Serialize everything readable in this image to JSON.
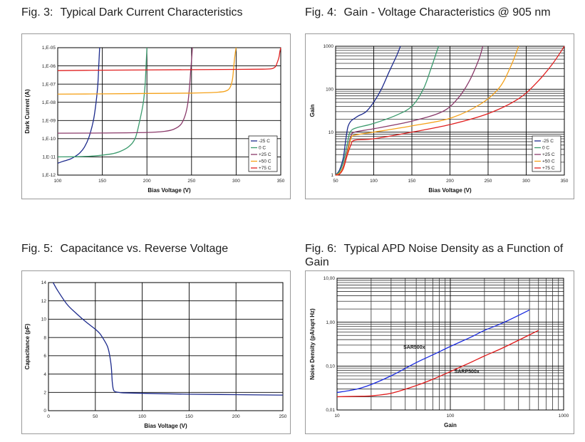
{
  "figures": [
    {
      "number": "Fig. 3:",
      "title": "Typical Dark Current Characteristics"
    },
    {
      "number": "Fig. 4:",
      "title": "Gain - Voltage Characteristics @ 905 nm"
    },
    {
      "number": "Fig. 5:",
      "title": "Capacitance vs. Reverse Voltage"
    },
    {
      "number": "Fig. 6:",
      "title": "Typical APD Noise Density as a Function of Gain"
    }
  ],
  "colors": {
    "-25C": "#1c2a8c",
    "0C": "#3a9a6c",
    "+25C": "#8a3a6a",
    "+50C": "#f5a21a",
    "+75C": "#e02020",
    "capacitance": "#1c2a8c",
    "SAR500x": "#1a2ae0",
    "SARP500x": "#e01a1a"
  },
  "chart_data": [
    {
      "id": "fig3",
      "type": "line",
      "title": "Typical Dark Current Characteristics",
      "xlabel": "Bias Voltage (V)",
      "ylabel": "Dark Current (A)",
      "xlim": [
        100,
        350
      ],
      "ylog": true,
      "ylim": [
        1e-12,
        1e-05
      ],
      "xticks": [
        "100",
        "150",
        "200",
        "250",
        "300",
        "350"
      ],
      "yticks": [
        "1,E-12",
        "1,E-11",
        "1,E-10",
        "1,E-09",
        "1,E-08",
        "1,E-07",
        "1,E-06",
        "1,E-05"
      ],
      "legend": "bottom-right",
      "series": [
        {
          "name": "-25 C",
          "color": "#1c2a8c",
          "x": [
            100,
            105,
            110,
            115,
            120,
            125,
            130,
            135,
            140,
            143,
            145,
            146,
            147
          ],
          "y": [
            4.5e-12,
            5.5e-12,
            6.5e-12,
            8e-12,
            1.1e-11,
            1.7e-11,
            3.5e-11,
            1.2e-10,
            1e-09,
            1e-08,
            1e-07,
            1e-06,
            1e-05
          ]
        },
        {
          "name": "0 C",
          "color": "#3a9a6c",
          "x": [
            100,
            120,
            140,
            160,
            170,
            180,
            187,
            192,
            196,
            198,
            199,
            200
          ],
          "y": [
            1e-11,
            1.02e-11,
            1.12e-11,
            1.45e-11,
            2e-11,
            3.8e-11,
            1.1e-10,
            1e-09,
            1e-08,
            1e-07,
            1e-06,
            1e-05
          ]
        },
        {
          "name": "+25 C",
          "color": "#8a3a6a",
          "x": [
            100,
            150,
            200,
            220,
            230,
            238,
            243,
            246,
            248,
            249,
            250,
            251
          ],
          "y": [
            2e-10,
            2.05e-10,
            2.2e-10,
            2.55e-10,
            3.3e-10,
            6e-10,
            2e-09,
            1e-08,
            1e-07,
            5e-07,
            2e-06,
            1e-05
          ]
        },
        {
          "name": "+50 C",
          "color": "#f5a21a",
          "x": [
            100,
            150,
            200,
            250,
            280,
            290,
            294,
            296,
            297,
            298,
            299,
            300
          ],
          "y": [
            2.8e-08,
            2.9e-08,
            3.05e-08,
            3.2e-08,
            3.6e-08,
            4.5e-08,
            8e-08,
            2e-07,
            6e-07,
            2e-06,
            5e-06,
            1e-05
          ]
        },
        {
          "name": "+75 C",
          "color": "#e02020",
          "x": [
            100,
            150,
            200,
            250,
            300,
            330,
            340,
            344,
            346,
            348,
            349,
            350
          ],
          "y": [
            5.5e-07,
            5.8e-07,
            6e-07,
            6.2e-07,
            6.4e-07,
            6.6e-07,
            7e-07,
            9e-07,
            1.5e-06,
            3e-06,
            6e-06,
            1e-05
          ]
        }
      ]
    },
    {
      "id": "fig4",
      "type": "line",
      "title": "Gain - Voltage Characteristics @ 905 nm",
      "xlabel": "Bias Voltage (V)",
      "ylabel": "Gain",
      "xlim": [
        50,
        350
      ],
      "ylog": true,
      "ylim": [
        1,
        1000
      ],
      "xticks": [
        "50",
        "100",
        "150",
        "200",
        "250",
        "300",
        "350"
      ],
      "yticks": [
        "1",
        "10",
        "100",
        "1000"
      ],
      "legend": "bottom-right",
      "series": [
        {
          "name": "-25 C",
          "color": "#1c2a8c",
          "x": [
            50,
            55,
            60,
            63,
            66,
            70,
            75,
            80,
            90,
            100,
            110,
            120,
            130,
            135
          ],
          "y": [
            1,
            1.3,
            2.5,
            6,
            13,
            18,
            21,
            24,
            30,
            50,
            100,
            250,
            600,
            1000
          ]
        },
        {
          "name": "0 C",
          "color": "#3a9a6c",
          "x": [
            50,
            55,
            60,
            65,
            68,
            72,
            80,
            100,
            130,
            150,
            165,
            175,
            185
          ],
          "y": [
            1,
            1.2,
            2,
            5,
            9,
            11.5,
            13,
            16,
            25,
            40,
            100,
            300,
            1000
          ]
        },
        {
          "name": "+25 C",
          "color": "#8a3a6a",
          "x": [
            50,
            55,
            60,
            65,
            70,
            75,
            100,
            150,
            190,
            210,
            225,
            238,
            243
          ],
          "y": [
            1,
            1.1,
            1.6,
            3.5,
            8,
            10,
            12,
            18,
            30,
            60,
            150,
            500,
            1000
          ]
        },
        {
          "name": "+50 C",
          "color": "#f5a21a",
          "x": [
            50,
            55,
            60,
            65,
            70,
            75,
            100,
            150,
            200,
            240,
            265,
            280,
            290
          ],
          "y": [
            1,
            1.1,
            1.5,
            3,
            7,
            8.5,
            10,
            14,
            21,
            45,
            110,
            350,
            1000
          ]
        },
        {
          "name": "+75 C",
          "color": "#e02020",
          "x": [
            50,
            55,
            60,
            65,
            70,
            75,
            100,
            150,
            200,
            250,
            290,
            315,
            335,
            350
          ],
          "y": [
            1,
            1.05,
            1.4,
            2.8,
            5,
            6.5,
            7,
            10,
            15,
            27,
            60,
            150,
            400,
            1000
          ]
        }
      ]
    },
    {
      "id": "fig5",
      "type": "line",
      "title": "Capacitance vs. Reverse Voltage",
      "xlabel": "Bias Voltage (V)",
      "ylabel": "Capacitance (pF)",
      "xlim": [
        0,
        250
      ],
      "ylim": [
        0,
        14
      ],
      "xticks": [
        "0",
        "50",
        "100",
        "150",
        "200",
        "250"
      ],
      "yticks": [
        "0",
        "2",
        "4",
        "6",
        "8",
        "10",
        "12",
        "14"
      ],
      "series": [
        {
          "name": "Capacitance",
          "color": "#1c2a8c",
          "x": [
            5,
            10,
            20,
            30,
            40,
            50,
            55,
            60,
            63,
            65,
            67,
            68,
            69,
            70,
            72,
            75,
            80,
            100,
            150,
            200,
            250
          ],
          "y": [
            14,
            13.1,
            11.6,
            10.6,
            9.7,
            8.9,
            8.4,
            7.6,
            7,
            6.2,
            4.8,
            3.2,
            2.4,
            2.15,
            2.05,
            2,
            1.95,
            1.9,
            1.8,
            1.75,
            1.7
          ]
        }
      ]
    },
    {
      "id": "fig6",
      "type": "line",
      "title": "Typical APD Noise Density as a Function of Gain",
      "xlabel": "Gain",
      "ylabel": "Noise Density (pA/sqrt Hz)",
      "xlog": true,
      "ylog": true,
      "xlim": [
        10,
        1000
      ],
      "ylim": [
        0.01,
        10
      ],
      "xticks": [
        "10",
        "100",
        "1000"
      ],
      "yticks": [
        "0,01",
        "0,10",
        "1,00",
        "10,00"
      ],
      "annotations": [
        "SAR500x",
        "SARP500x"
      ],
      "series": [
        {
          "name": "SAR500x",
          "color": "#1a2ae0",
          "x": [
            10,
            15,
            20,
            30,
            50,
            70,
            100,
            150,
            200,
            300,
            500
          ],
          "y": [
            0.025,
            0.03,
            0.038,
            0.06,
            0.12,
            0.18,
            0.28,
            0.45,
            0.65,
            1.0,
            1.9
          ]
        },
        {
          "name": "SARP500x",
          "color": "#e01a1a",
          "x": [
            10,
            15,
            20,
            30,
            50,
            70,
            100,
            150,
            200,
            300,
            600
          ],
          "y": [
            0.02,
            0.0205,
            0.021,
            0.024,
            0.036,
            0.05,
            0.075,
            0.12,
            0.17,
            0.27,
            0.65
          ]
        }
      ]
    }
  ]
}
